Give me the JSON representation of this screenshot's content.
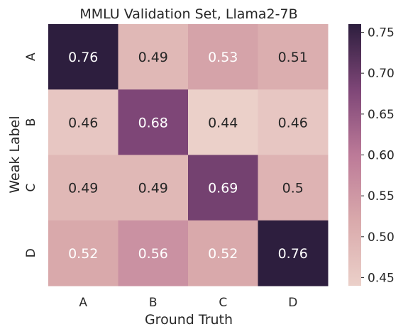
{
  "chart_data": {
    "type": "heatmap",
    "title": "MMLU Validation Set, Llama2-7B",
    "xlabel": "Ground Truth",
    "ylabel": "Weak Label",
    "x_categories": [
      "A",
      "B",
      "C",
      "D"
    ],
    "y_categories": [
      "A",
      "B",
      "C",
      "D"
    ],
    "values": [
      [
        0.76,
        0.49,
        0.53,
        0.51
      ],
      [
        0.46,
        0.68,
        0.44,
        0.46
      ],
      [
        0.49,
        0.49,
        0.69,
        0.5
      ],
      [
        0.52,
        0.56,
        0.52,
        0.76
      ]
    ],
    "cell_labels": [
      [
        "0.76",
        "0.49",
        "0.53",
        "0.51"
      ],
      [
        "0.46",
        "0.68",
        "0.44",
        "0.46"
      ],
      [
        "0.49",
        "0.49",
        "0.69",
        "0.5"
      ],
      [
        "0.52",
        "0.56",
        "0.52",
        "0.76"
      ]
    ],
    "colorbar": {
      "range": [
        0.44,
        0.76
      ],
      "ticks": [
        0.45,
        0.5,
        0.55,
        0.6,
        0.65,
        0.7,
        0.75
      ],
      "tick_labels": [
        "0.45",
        "0.50",
        "0.55",
        "0.60",
        "0.65",
        "0.70",
        "0.75"
      ]
    },
    "colormap": {
      "name": "cubehelix (light to dark)",
      "light": "#ebd0c9",
      "dark": "#2d1e3e"
    }
  }
}
